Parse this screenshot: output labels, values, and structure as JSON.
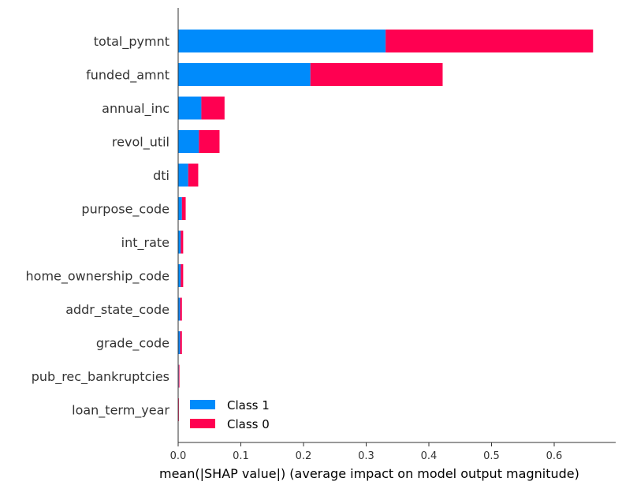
{
  "chart_data": {
    "type": "bar",
    "orientation": "horizontal",
    "stacked": true,
    "title": "",
    "xlabel": "mean(|SHAP value|) (average impact on model output magnitude)",
    "ylabel": "",
    "xlim": [
      0,
      0.7
    ],
    "x_ticks": [
      "0.0",
      "0.1",
      "0.2",
      "0.3",
      "0.4",
      "0.5",
      "0.6"
    ],
    "grid": false,
    "legend_position": "lower-right",
    "categories": [
      "total_pymnt",
      "funded_amnt",
      "annual_inc",
      "revol_util",
      "dti",
      "purpose_code",
      "int_rate",
      "home_ownership_code",
      "addr_state_code",
      "grade_code",
      "pub_rec_bankruptcies",
      "loan_term_year"
    ],
    "series": [
      {
        "name": "Class 1",
        "color": "#008bfb",
        "values": [
          0.331,
          0.211,
          0.037,
          0.033,
          0.016,
          0.006,
          0.004,
          0.004,
          0.003,
          0.003,
          0.001,
          0.0005
        ]
      },
      {
        "name": "Class 0",
        "color": "#ff0051",
        "values": [
          0.331,
          0.211,
          0.037,
          0.033,
          0.016,
          0.006,
          0.004,
          0.004,
          0.003,
          0.003,
          0.001,
          0.0005
        ]
      }
    ]
  }
}
